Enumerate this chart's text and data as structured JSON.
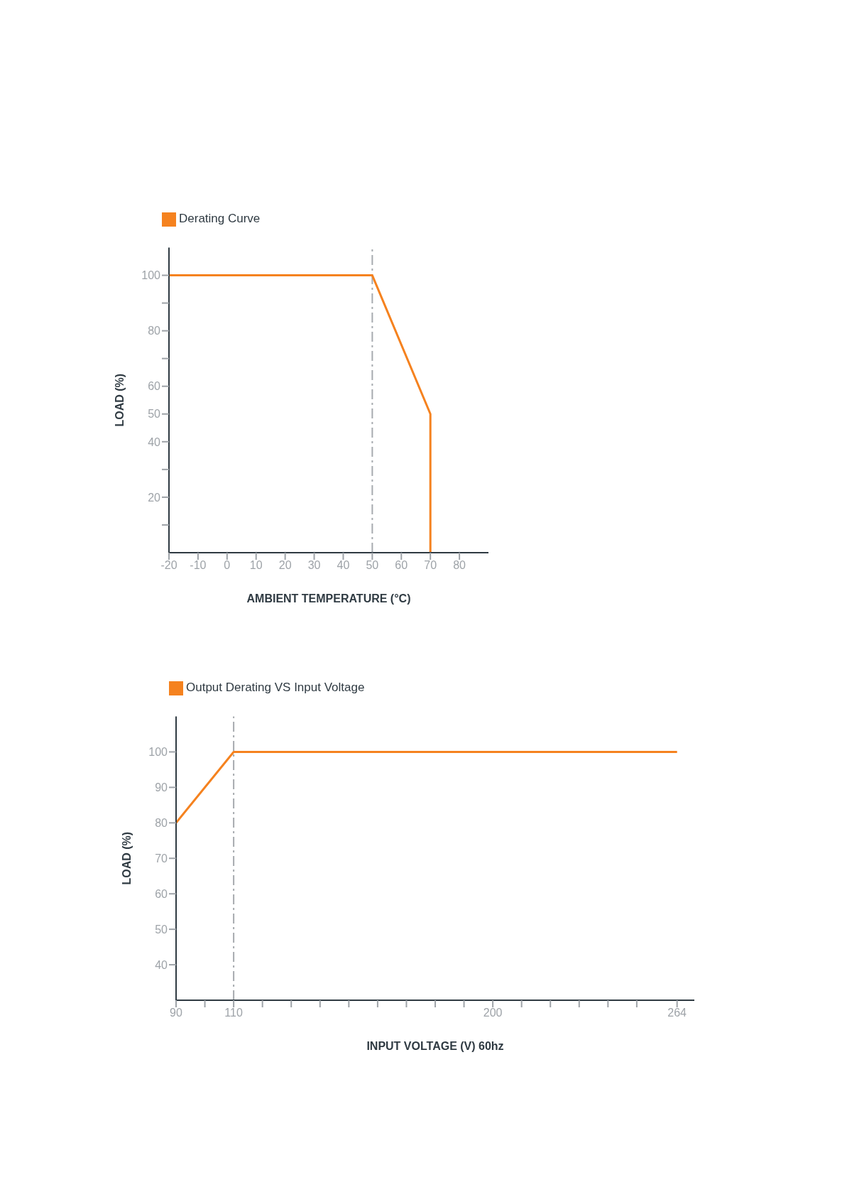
{
  "chart_data": [
    {
      "type": "line",
      "legend": "top left",
      "xlabel": "AMBIENT TEMPERATURE (°C)",
      "ylabel": "LOAD (%)",
      "xlim": [
        -20,
        90
      ],
      "xticks": [
        -20,
        -10,
        0,
        10,
        20,
        30,
        40,
        50,
        60,
        70,
        80
      ],
      "ylim": [
        0,
        110
      ],
      "yticks": [
        {
          "value": 10,
          "label": null
        },
        20,
        {
          "value": 30,
          "label": null
        },
        40,
        50,
        60,
        {
          "value": 70,
          "label": null
        },
        80,
        {
          "value": 90,
          "label": null
        },
        100
      ],
      "series": [
        {
          "name": "Derating Curve",
          "color": "#f5821f",
          "x": [
            -20,
            50,
            70,
            70
          ],
          "values": [
            100,
            100,
            50,
            0
          ]
        }
      ],
      "ref_lines": [
        {
          "axis": "x",
          "value": 50,
          "color": "#a7abaf",
          "line_style": "dashed"
        }
      ]
    },
    {
      "type": "line",
      "legend": "top left",
      "xlabel": "INPUT VOLTAGE (V) 60hz",
      "ylabel": "LOAD (%)",
      "xlim": [
        90,
        270
      ],
      "xticks": [
        90,
        {
          "value": 100,
          "label": null
        },
        110,
        {
          "value": 120,
          "label": null
        },
        {
          "value": 130,
          "label": null
        },
        {
          "value": 140,
          "label": null
        },
        {
          "value": 150,
          "label": null
        },
        {
          "value": 160,
          "label": null
        },
        {
          "value": 170,
          "label": null
        },
        {
          "value": 180,
          "label": null
        },
        {
          "value": 190,
          "label": null
        },
        200,
        {
          "value": 210,
          "label": null
        },
        {
          "value": 220,
          "label": null
        },
        {
          "value": 230,
          "label": null
        },
        {
          "value": 240,
          "label": null
        },
        {
          "value": 250,
          "label": null
        },
        264
      ],
      "ylim": [
        30,
        110
      ],
      "yticks": [
        40,
        50,
        60,
        70,
        80,
        90,
        100
      ],
      "series": [
        {
          "name": "Output Derating VS Input Voltage",
          "color": "#f5821f",
          "x": [
            90,
            110,
            264
          ],
          "values": [
            80,
            100,
            100
          ]
        }
      ],
      "ref_lines": [
        {
          "axis": "x",
          "value": 110,
          "color": "#a7abaf",
          "line_style": "dashed"
        }
      ]
    }
  ]
}
